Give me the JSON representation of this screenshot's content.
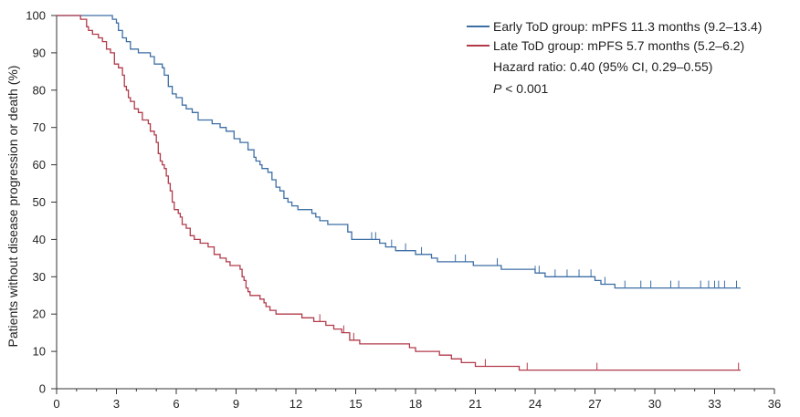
{
  "chart_data": {
    "type": "line",
    "title": "",
    "xlabel": "",
    "ylabel": "Patients without disease progression or death (%)",
    "xlim": [
      0,
      36
    ],
    "ylim": [
      0,
      100
    ],
    "xticks": [
      0,
      3,
      6,
      9,
      12,
      15,
      18,
      21,
      24,
      27,
      30,
      33,
      36
    ],
    "yticks": [
      0,
      10,
      20,
      30,
      40,
      50,
      60,
      70,
      80,
      90,
      100
    ],
    "grid": false,
    "legend_position": "top-right",
    "colors": {
      "early": "#3d6fa5",
      "late": "#b23a4a",
      "axis": "#333333"
    },
    "series": [
      {
        "id": "early",
        "name": "Early ToD group: mPFS 11.3 months (9.2–13.4)",
        "step_points": [
          [
            0,
            100
          ],
          [
            2.8,
            100
          ],
          [
            2.8,
            99
          ],
          [
            3.0,
            98
          ],
          [
            3.1,
            96
          ],
          [
            3.3,
            94
          ],
          [
            3.5,
            93
          ],
          [
            3.7,
            91
          ],
          [
            4.1,
            90
          ],
          [
            4.7,
            89
          ],
          [
            4.9,
            87
          ],
          [
            5.3,
            86
          ],
          [
            5.4,
            84
          ],
          [
            5.6,
            81
          ],
          [
            5.8,
            79
          ],
          [
            6.0,
            78
          ],
          [
            6.3,
            76
          ],
          [
            6.5,
            75
          ],
          [
            6.8,
            74
          ],
          [
            7.1,
            72
          ],
          [
            7.8,
            71
          ],
          [
            8.2,
            70
          ],
          [
            8.5,
            69
          ],
          [
            8.9,
            67
          ],
          [
            9.2,
            66
          ],
          [
            9.6,
            64
          ],
          [
            9.9,
            62
          ],
          [
            10.0,
            61
          ],
          [
            10.2,
            60
          ],
          [
            10.3,
            59
          ],
          [
            10.6,
            58
          ],
          [
            10.8,
            56
          ],
          [
            11.0,
            54
          ],
          [
            11.2,
            53
          ],
          [
            11.4,
            51
          ],
          [
            11.6,
            50
          ],
          [
            11.8,
            49
          ],
          [
            12.1,
            48
          ],
          [
            12.8,
            47
          ],
          [
            13.0,
            46
          ],
          [
            13.2,
            45
          ],
          [
            13.6,
            44
          ],
          [
            14.6,
            42
          ],
          [
            14.8,
            40
          ],
          [
            16.2,
            39
          ],
          [
            16.5,
            38
          ],
          [
            17.0,
            37
          ],
          [
            18.0,
            36
          ],
          [
            18.8,
            35
          ],
          [
            19.1,
            34
          ],
          [
            20.9,
            33
          ],
          [
            22.3,
            32
          ],
          [
            24.0,
            31
          ],
          [
            24.5,
            30
          ],
          [
            27.0,
            29
          ],
          [
            27.3,
            28
          ],
          [
            28.0,
            27
          ],
          [
            34.3,
            27
          ]
        ],
        "censor_x": [
          15.8,
          16.0,
          16.8,
          17.5,
          18.3,
          20.0,
          20.5,
          22.1,
          24.0,
          24.2,
          25.0,
          25.6,
          26.2,
          26.8,
          27.5,
          28.5,
          29.3,
          29.8,
          30.8,
          31.2,
          32.3,
          32.7,
          33.0,
          33.2,
          33.5,
          34.1
        ]
      },
      {
        "id": "late",
        "name": "Late ToD group: mPFS 5.7 months (5.2–6.2)",
        "step_points": [
          [
            0,
            100
          ],
          [
            1.2,
            99
          ],
          [
            1.5,
            97
          ],
          [
            1.6,
            96
          ],
          [
            1.8,
            95
          ],
          [
            2.1,
            94
          ],
          [
            2.3,
            93
          ],
          [
            2.5,
            91
          ],
          [
            2.7,
            90
          ],
          [
            2.9,
            87
          ],
          [
            3.1,
            86
          ],
          [
            3.3,
            84
          ],
          [
            3.4,
            81
          ],
          [
            3.5,
            80
          ],
          [
            3.6,
            78
          ],
          [
            3.7,
            77
          ],
          [
            3.9,
            75
          ],
          [
            4.1,
            74
          ],
          [
            4.3,
            72
          ],
          [
            4.6,
            71
          ],
          [
            4.7,
            69
          ],
          [
            4.9,
            68
          ],
          [
            5.0,
            66
          ],
          [
            5.1,
            63
          ],
          [
            5.2,
            61
          ],
          [
            5.3,
            60
          ],
          [
            5.4,
            59
          ],
          [
            5.5,
            57
          ],
          [
            5.6,
            55
          ],
          [
            5.7,
            53
          ],
          [
            5.8,
            50
          ],
          [
            5.9,
            48
          ],
          [
            6.1,
            47
          ],
          [
            6.2,
            46
          ],
          [
            6.3,
            44
          ],
          [
            6.5,
            43
          ],
          [
            6.7,
            41
          ],
          [
            6.9,
            40
          ],
          [
            7.2,
            39
          ],
          [
            7.6,
            38
          ],
          [
            7.9,
            36
          ],
          [
            8.2,
            35
          ],
          [
            8.5,
            34
          ],
          [
            8.7,
            33
          ],
          [
            9.2,
            32
          ],
          [
            9.3,
            30
          ],
          [
            9.4,
            29
          ],
          [
            9.5,
            27
          ],
          [
            9.6,
            26
          ],
          [
            9.7,
            25
          ],
          [
            10.2,
            24
          ],
          [
            10.4,
            23
          ],
          [
            10.5,
            22
          ],
          [
            10.7,
            21
          ],
          [
            11.0,
            20
          ],
          [
            12.3,
            19
          ],
          [
            12.9,
            18
          ],
          [
            13.5,
            17
          ],
          [
            13.9,
            16
          ],
          [
            14.3,
            15
          ],
          [
            14.7,
            13
          ],
          [
            15.2,
            12
          ],
          [
            17.7,
            11
          ],
          [
            18.0,
            10
          ],
          [
            19.2,
            9
          ],
          [
            19.8,
            8
          ],
          [
            20.3,
            7
          ],
          [
            21.0,
            6
          ],
          [
            23.2,
            5
          ],
          [
            34.3,
            5
          ]
        ],
        "censor_x": [
          13.2,
          14.4,
          14.9,
          21.5,
          23.6,
          27.1,
          34.2
        ]
      }
    ],
    "annotations": [
      {
        "id": "hazard_ratio",
        "text": "Hazard ratio: 0.40 (95% CI, 0.29–0.55)"
      },
      {
        "id": "p_value_prefix",
        "text": "P"
      },
      {
        "id": "p_value_rest",
        "text": " < 0.001"
      }
    ]
  }
}
